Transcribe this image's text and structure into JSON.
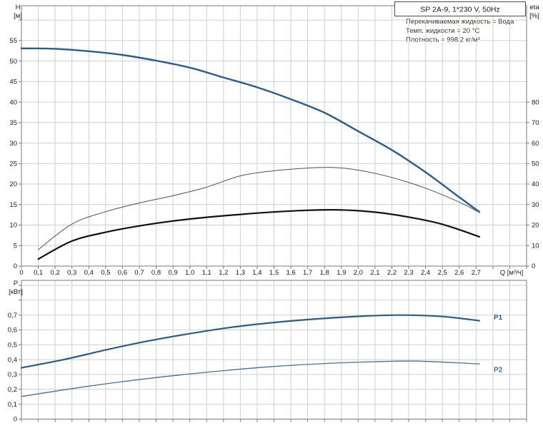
{
  "colors": {
    "curve_blue": "#2a5d8f",
    "curve_blue_light": "#41719c",
    "curve_gray": "#4f4f4f",
    "curve_black": "#111111",
    "grid": "#cfcfcf",
    "axis": "#7a7a7a",
    "text": "#1a1a1a",
    "info_text": "#3f372c",
    "box_border": "#4d4d4d"
  },
  "chart_data": [
    {
      "type": "line",
      "title": "SP 2A-9, 1*230 V, 50Hz",
      "annotations": [
        "Перекачиваемая жидкость = Вода",
        "Темп. жидкости = 20 °C",
        "Плотность = 998.2 кг/м³"
      ],
      "xlabel": "Q [м³/ч]",
      "ylabel_left_name": "H",
      "ylabel_left_unit": "[м]",
      "ylabel_right_name": "eta",
      "ylabel_right_unit": "[%]",
      "xlim": [
        0,
        3.0
      ],
      "ylim_left": [
        0,
        63.5
      ],
      "ylim_right": [
        0,
        127
      ],
      "grid": true,
      "x_tick_step": 0.1,
      "x_tick_labels": [
        "0",
        "0,1",
        "0,2",
        "0,3",
        "0,4",
        "0,5",
        "0,6",
        "0,7",
        "0,8",
        "0,9",
        "1,0",
        "1,1",
        "1,2",
        "1,3",
        "1,4",
        "1,5",
        "1,6",
        "1,7",
        "1,8",
        "1,9",
        "2,0",
        "2,1",
        "2,2",
        "2,3",
        "2,4",
        "2,5",
        "2,6",
        "2,7"
      ],
      "y_left_tick_step": 5,
      "y_left_tick_labels": [
        "0",
        "5",
        "10",
        "15",
        "20",
        "25",
        "30",
        "35",
        "40",
        "45",
        "50",
        "55"
      ],
      "y_right_tick_step": 10,
      "y_right_tick_labels": [
        "0",
        "10",
        "20",
        "30",
        "40",
        "50",
        "60",
        "70",
        "80"
      ],
      "series": [
        {
          "name": "H",
          "axis": "left",
          "color": "#2a5d8f",
          "width": 2.4,
          "points": [
            [
              0,
              53.1
            ],
            [
              0.2,
              53.0
            ],
            [
              0.4,
              52.4
            ],
            [
              0.6,
              51.5
            ],
            [
              0.8,
              50.1
            ],
            [
              1.0,
              48.4
            ],
            [
              1.2,
              46.0
            ],
            [
              1.4,
              43.6
            ],
            [
              1.6,
              40.7
            ],
            [
              1.8,
              37.4
            ],
            [
              2.0,
              32.9
            ],
            [
              2.2,
              28.3
            ],
            [
              2.4,
              22.9
            ],
            [
              2.6,
              16.8
            ],
            [
              2.72,
              13.2
            ]
          ]
        },
        {
          "name": "eta",
          "axis": "right",
          "color": "#4f4f4f",
          "width": 1,
          "points": [
            [
              0.1,
              8
            ],
            [
              0.3,
              20.5
            ],
            [
              0.5,
              26.5
            ],
            [
              0.7,
              30.8
            ],
            [
              0.9,
              34.3
            ],
            [
              1.1,
              38.5
            ],
            [
              1.3,
              44.0
            ],
            [
              1.5,
              46.5
            ],
            [
              1.7,
              47.8
            ],
            [
              1.85,
              48.1
            ],
            [
              2.0,
              46.8
            ],
            [
              2.2,
              43.2
            ],
            [
              2.4,
              38.0
            ],
            [
              2.6,
              31.2
            ],
            [
              2.72,
              26.2
            ]
          ]
        },
        {
          "name": "eta-total",
          "axis": "right",
          "color": "#111111",
          "width": 2.2,
          "points": [
            [
              0.1,
              3.4
            ],
            [
              0.3,
              12.2
            ],
            [
              0.5,
              16.5
            ],
            [
              0.7,
              19.6
            ],
            [
              0.9,
              22.0
            ],
            [
              1.1,
              23.8
            ],
            [
              1.3,
              25.2
            ],
            [
              1.5,
              26.4
            ],
            [
              1.7,
              27.2
            ],
            [
              1.9,
              27.4
            ],
            [
              2.1,
              26.3
            ],
            [
              2.3,
              23.9
            ],
            [
              2.5,
              20.4
            ],
            [
              2.72,
              14.3
            ]
          ]
        }
      ]
    },
    {
      "type": "line",
      "title": "",
      "xlabel": "",
      "ylabel_left_name": "P",
      "ylabel_left_unit": "[кВт]",
      "xlim": [
        0,
        3.0
      ],
      "ylim_left": [
        0,
        0.9335
      ],
      "grid": true,
      "x_tick_step": 0.1,
      "x_tick_labels": [],
      "y_left_tick_step": 0.1,
      "y_left_tick_labels": [
        "0",
        "0,1",
        "0,2",
        "0,3",
        "0,4",
        "0,5",
        "0,6",
        "0,7"
      ],
      "series": [
        {
          "name": "P1",
          "axis": "left",
          "color": "#2a5d8f",
          "width": 2.2,
          "label": "P1",
          "label_at": [
            2.805,
            0.685
          ],
          "points": [
            [
              0,
              0.345
            ],
            [
              0.25,
              0.4
            ],
            [
              0.5,
              0.465
            ],
            [
              0.75,
              0.525
            ],
            [
              1.0,
              0.575
            ],
            [
              1.25,
              0.618
            ],
            [
              1.5,
              0.65
            ],
            [
              1.75,
              0.674
            ],
            [
              2.0,
              0.691
            ],
            [
              2.25,
              0.7
            ],
            [
              2.5,
              0.69
            ],
            [
              2.72,
              0.662
            ]
          ]
        },
        {
          "name": "P2",
          "axis": "left",
          "color": "#41719c",
          "width": 1.3,
          "label": "P2",
          "label_at": [
            2.805,
            0.33
          ],
          "points": [
            [
              0,
              0.152
            ],
            [
              0.3,
              0.205
            ],
            [
              0.6,
              0.252
            ],
            [
              0.9,
              0.292
            ],
            [
              1.2,
              0.326
            ],
            [
              1.5,
              0.354
            ],
            [
              1.8,
              0.374
            ],
            [
              2.1,
              0.386
            ],
            [
              2.35,
              0.39
            ],
            [
              2.72,
              0.371
            ]
          ]
        }
      ]
    }
  ]
}
